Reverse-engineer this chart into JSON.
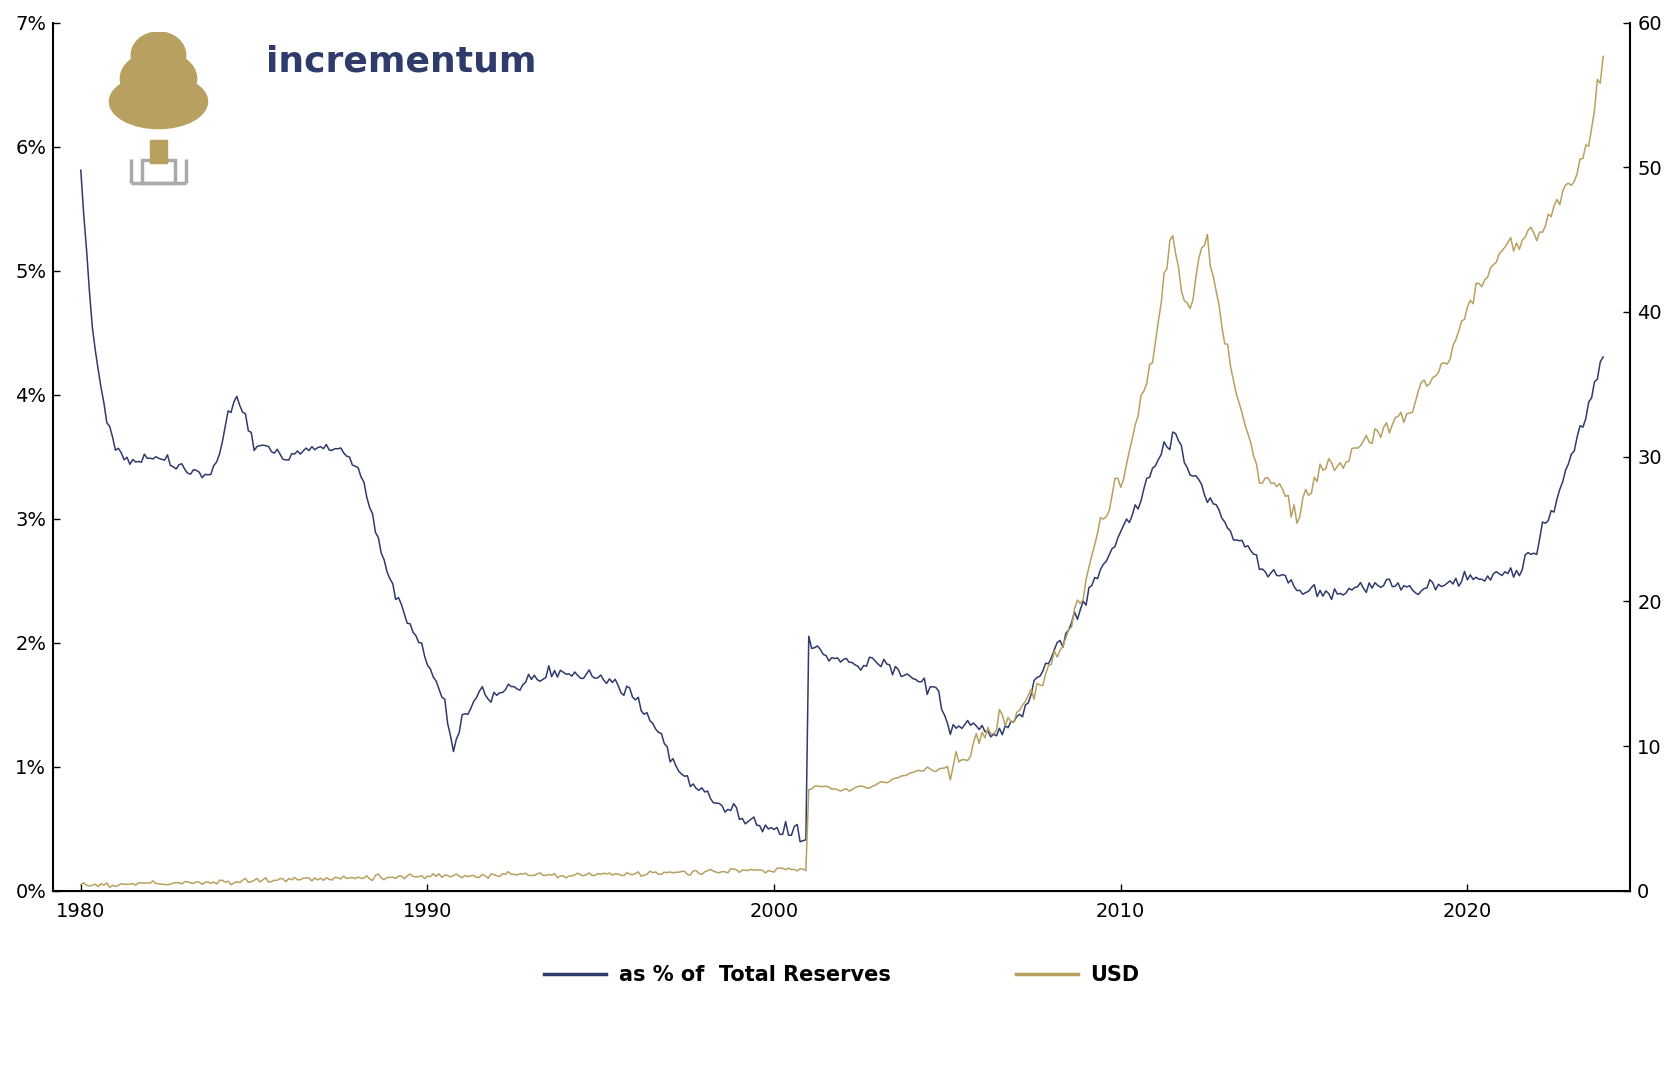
{
  "navy_color": "#2E3B6B",
  "gold_color": "#B8A060",
  "bg_color": "#FFFFFF",
  "lhs_yticks": [
    0,
    1,
    2,
    3,
    4,
    5,
    6,
    7
  ],
  "lhs_ylabels": [
    "0%",
    "1%",
    "2%",
    "3%",
    "4%",
    "5%",
    "6%",
    "7%"
  ],
  "rhs_yticks": [
    0,
    10,
    20,
    30,
    40,
    50,
    60
  ],
  "rhs_ylabels": [
    "0",
    "10",
    "20",
    "30",
    "40",
    "50",
    "60"
  ],
  "xticks": [
    1980,
    1990,
    2000,
    2010,
    2020
  ],
  "legend_pct_label": "as % of  Total Reserves",
  "legend_usd_label": "USD",
  "lhs_ylim": [
    0,
    0.07
  ],
  "rhs_ylim": [
    0,
    60
  ],
  "incrementum_color": "#2E3B6B",
  "tree_gold": "#B8A060",
  "tree_gray": "#AAAAAA"
}
